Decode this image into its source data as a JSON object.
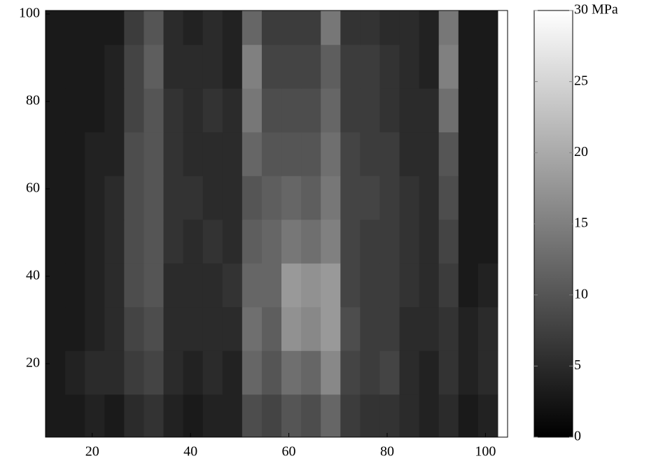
{
  "chart_data": {
    "type": "heatmap",
    "colormap": "gray",
    "x": [
      12.5,
      16.5,
      20.5,
      24.5,
      28.5,
      32.5,
      36.5,
      40.5,
      44.5,
      48.5,
      52.5,
      56.5,
      60.5,
      64.5,
      68.5,
      72.5,
      76.5,
      80.5,
      84.5,
      88.5,
      92.5,
      96.5,
      100.5
    ],
    "y": [
      8,
      18,
      28,
      38,
      48,
      58,
      68,
      78,
      88,
      98
    ],
    "z": [
      [
        3,
        3,
        4,
        3,
        5,
        6,
        4,
        3,
        4,
        4,
        9,
        8,
        10,
        9,
        12,
        7,
        6,
        6,
        5,
        4,
        5,
        3,
        4
      ],
      [
        3,
        4,
        5,
        5,
        7,
        8,
        5,
        4,
        5,
        4,
        12,
        10,
        13,
        12,
        16,
        8,
        7,
        8,
        5,
        4,
        6,
        4,
        5
      ],
      [
        3,
        3,
        4,
        5,
        8,
        9,
        5,
        5,
        5,
        5,
        13,
        11,
        17,
        16,
        18,
        9,
        7,
        7,
        5,
        5,
        6,
        4,
        5
      ],
      [
        3,
        3,
        4,
        5,
        9,
        10,
        5,
        5,
        5,
        6,
        12,
        12,
        18,
        17,
        18,
        8,
        7,
        7,
        6,
        5,
        7,
        3,
        4
      ],
      [
        3,
        3,
        4,
        5,
        9,
        10,
        6,
        5,
        6,
        5,
        11,
        12,
        14,
        13,
        15,
        8,
        7,
        7,
        6,
        5,
        8,
        3,
        3
      ],
      [
        3,
        3,
        4,
        5,
        9,
        10,
        6,
        6,
        5,
        5,
        10,
        11,
        12,
        11,
        14,
        8,
        8,
        7,
        6,
        5,
        9,
        3,
        3
      ],
      [
        3,
        3,
        4,
        4,
        9,
        10,
        6,
        5,
        5,
        5,
        12,
        10,
        10,
        10,
        13,
        8,
        7,
        7,
        5,
        5,
        10,
        3,
        3
      ],
      [
        3,
        3,
        3,
        4,
        8,
        10,
        6,
        5,
        6,
        5,
        14,
        9,
        9,
        9,
        12,
        7,
        7,
        6,
        5,
        5,
        13,
        3,
        3
      ],
      [
        3,
        3,
        3,
        4,
        8,
        11,
        5,
        5,
        5,
        4,
        15,
        8,
        8,
        8,
        11,
        7,
        7,
        6,
        5,
        4,
        15,
        3,
        3
      ],
      [
        3,
        3,
        3,
        3,
        7,
        10,
        5,
        4,
        5,
        4,
        12,
        7,
        7,
        7,
        14,
        6,
        6,
        5,
        5,
        4,
        14,
        3,
        3
      ]
    ],
    "xlim": [
      10.5,
      104.5
    ],
    "xticks": [
      20,
      40,
      60,
      80,
      100
    ],
    "ylim": [
      3.2,
      100.8
    ],
    "yticks": [
      20,
      40,
      60,
      80,
      100
    ],
    "clim": [
      0,
      30
    ],
    "cticks": [
      0,
      5,
      10,
      15,
      20,
      25,
      {
        "value": 30,
        "label": "30 MPa"
      }
    ]
  }
}
